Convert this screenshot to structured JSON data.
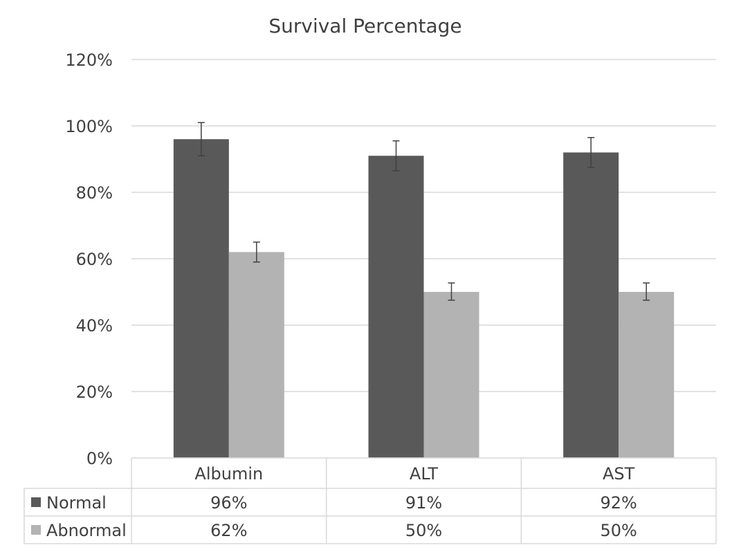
{
  "chart_data": {
    "type": "bar",
    "title": "Survival Percentage",
    "categories": [
      "Albumin",
      "ALT",
      "AST"
    ],
    "series": [
      {
        "name": "Normal",
        "values": [
          96,
          91,
          92
        ],
        "labels": [
          "96%",
          "91%",
          "92%"
        ],
        "error_upper": [
          101,
          95.5,
          96.5
        ],
        "error_lower": [
          91,
          86.5,
          87.5
        ],
        "color": "#595959"
      },
      {
        "name": "Abnormal",
        "values": [
          62,
          50,
          50
        ],
        "labels": [
          "62%",
          "50%",
          "50%"
        ],
        "error_upper": [
          65,
          52.7,
          52.7
        ],
        "error_lower": [
          59,
          47.5,
          47.5
        ],
        "color": "#b3b3b3"
      }
    ],
    "ylim": [
      0,
      120
    ],
    "yticks": [
      0,
      20,
      40,
      60,
      80,
      100,
      120
    ],
    "ytick_labels": [
      "0%",
      "20%",
      "40%",
      "60%",
      "80%",
      "100%",
      "120%"
    ],
    "grid": true,
    "legend": "data-table"
  }
}
